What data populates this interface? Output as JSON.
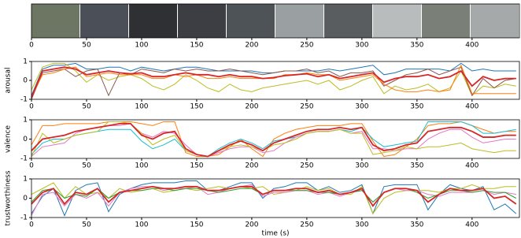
{
  "chart_data": [
    {
      "type": "image-strip",
      "xlim": [
        0,
        443
      ],
      "xticks": [
        0,
        50,
        100,
        150,
        200,
        250,
        300,
        350,
        400
      ]
    },
    {
      "type": "line",
      "ylabel": "arousal",
      "xlim": [
        0,
        443
      ],
      "ylim": [
        -1,
        1
      ],
      "xticks": [
        0,
        50,
        100,
        150,
        200,
        250,
        300,
        350,
        400
      ],
      "yticks": [
        -1,
        0,
        1
      ],
      "x": [
        0,
        10,
        20,
        30,
        40,
        50,
        60,
        70,
        80,
        90,
        100,
        110,
        120,
        130,
        140,
        150,
        160,
        170,
        180,
        190,
        200,
        210,
        220,
        230,
        240,
        250,
        260,
        270,
        280,
        290,
        300,
        310,
        320,
        330,
        340,
        350,
        360,
        370,
        380,
        390,
        400,
        410,
        420,
        430,
        440
      ],
      "series": [
        {
          "color": "#1f77b4",
          "values": [
            -0.8,
            0.6,
            0.8,
            0.8,
            0.9,
            0.6,
            0.6,
            0.7,
            0.7,
            0.5,
            0.7,
            0.6,
            0.5,
            0.6,
            0.7,
            0.7,
            0.6,
            0.5,
            0.5,
            0.5,
            0.5,
            0.4,
            0.4,
            0.5,
            0.5,
            0.5,
            0.5,
            0.6,
            0.5,
            0.6,
            0.7,
            0.8,
            0.3,
            0.4,
            0.6,
            0.6,
            0.6,
            0.6,
            0.5,
            0.9,
            0.5,
            0.6,
            0.5,
            0.5,
            0.5
          ]
        },
        {
          "color": "#bcbd22",
          "values": [
            -0.5,
            0.7,
            0.9,
            0.9,
            0.5,
            -0.1,
            0.3,
            0.0,
            0.2,
            0.3,
            0.1,
            -0.3,
            -0.5,
            -0.2,
            0.3,
            0.0,
            -0.4,
            -0.6,
            -0.2,
            -0.5,
            -0.6,
            -0.4,
            -0.3,
            -0.2,
            -0.1,
            0.0,
            -0.2,
            0.0,
            -0.5,
            -0.3,
            0.0,
            0.2,
            -0.7,
            -0.3,
            -0.5,
            -0.4,
            -0.2,
            -0.6,
            -0.4,
            0.5,
            -0.8,
            -0.3,
            -0.4,
            -0.2,
            -0.3
          ]
        },
        {
          "color": "#8c564b",
          "values": [
            -1,
            0.4,
            0.5,
            0.6,
            0.2,
            0.5,
            0.6,
            -0.8,
            0.4,
            0.3,
            0.6,
            0.5,
            0.4,
            0.6,
            0.5,
            0.6,
            0.5,
            0.5,
            0.6,
            0.5,
            0.4,
            0.3,
            0.4,
            0.5,
            0.5,
            0.6,
            0.4,
            0.5,
            0.2,
            0.4,
            0.4,
            0.5,
            -0.3,
            0.0,
            0.3,
            0.4,
            0.6,
            0.3,
            0.5,
            0.7,
            -0.8,
            0.1,
            -0.4,
            0.0,
            0.1
          ]
        },
        {
          "color": "#ff7f0e",
          "values": [
            -0.9,
            0.3,
            0.4,
            0.6,
            0.7,
            0.2,
            0.3,
            0.4,
            0.3,
            0.3,
            0.3,
            0.1,
            0.1,
            0.3,
            0.2,
            0.3,
            0.1,
            0.1,
            0.2,
            0.1,
            0.1,
            0.1,
            0.1,
            0.3,
            0.3,
            0.4,
            0.3,
            0.3,
            0.0,
            0.1,
            0.2,
            0.3,
            -0.2,
            -0.5,
            -0.6,
            -0.6,
            -0.5,
            -0.6,
            -0.5,
            0.8,
            -0.7,
            -0.7,
            -0.7,
            -0.7,
            -0.7
          ]
        },
        {
          "color": "#d62728",
          "values": [
            -0.9,
            0.5,
            0.6,
            0.7,
            0.6,
            0.3,
            0.4,
            0.5,
            0.4,
            0.35,
            0.4,
            0.2,
            0.2,
            0.3,
            0.4,
            0.3,
            0.3,
            0.2,
            0.3,
            0.2,
            0.2,
            0.1,
            0.15,
            0.25,
            0.3,
            0.35,
            0.2,
            0.3,
            0.1,
            0.2,
            0.3,
            0.4,
            -0.1,
            0.1,
            0.2,
            0.2,
            0.3,
            0.1,
            0.2,
            0.5,
            -0.3,
            0.2,
            0.0,
            0.1,
            0.1
          ]
        }
      ]
    },
    {
      "type": "line",
      "ylabel": "valence",
      "xlim": [
        0,
        443
      ],
      "ylim": [
        -1,
        1
      ],
      "xticks": [
        0,
        50,
        100,
        150,
        200,
        250,
        300,
        350,
        400
      ],
      "yticks": [
        -1,
        0,
        1
      ],
      "x": [
        0,
        10,
        20,
        30,
        40,
        50,
        60,
        70,
        80,
        90,
        100,
        110,
        120,
        130,
        140,
        150,
        160,
        170,
        180,
        190,
        200,
        210,
        220,
        230,
        240,
        250,
        260,
        270,
        280,
        290,
        300,
        310,
        320,
        330,
        340,
        350,
        360,
        370,
        380,
        390,
        400,
        410,
        420,
        430,
        440
      ],
      "series": [
        {
          "color": "#ff7f0e",
          "values": [
            -0.3,
            0.7,
            0.7,
            0.8,
            0.8,
            0.8,
            0.8,
            0.9,
            0.9,
            0.9,
            0.8,
            0.7,
            0.9,
            0.9,
            -0.7,
            -0.9,
            -0.9,
            -0.8,
            -0.4,
            0.0,
            -0.5,
            -0.9,
            0.0,
            0.3,
            0.5,
            0.6,
            0.7,
            0.7,
            0.7,
            0.8,
            0.8,
            -0.1,
            -0.9,
            -0.8,
            -0.4,
            0.0,
            0.7,
            0.8,
            0.8,
            0.9,
            0.7,
            0.5,
            0.3,
            0.4,
            0.4
          ]
        },
        {
          "color": "#17becf",
          "values": [
            -0.8,
            -0.2,
            0.0,
            0.0,
            0.2,
            0.3,
            0.4,
            0.5,
            0.5,
            0.5,
            -0.1,
            -0.5,
            -0.3,
            0.0,
            -0.6,
            -0.8,
            -0.9,
            -0.5,
            -0.2,
            0.0,
            -0.2,
            -0.5,
            -0.1,
            0.0,
            0.1,
            0.3,
            0.4,
            0.4,
            0.5,
            0.4,
            0.6,
            0.0,
            -0.4,
            -0.3,
            -0.2,
            -0.1,
            0.9,
            0.9,
            0.9,
            0.9,
            0.7,
            0.3,
            0.3,
            0.4,
            0.5
          ]
        },
        {
          "color": "#e377c2",
          "values": [
            -0.9,
            -0.4,
            -0.3,
            -0.2,
            0.3,
            0.5,
            0.6,
            0.7,
            0.7,
            0.8,
            0.3,
            0.1,
            0.4,
            0.3,
            -0.3,
            -0.8,
            -0.9,
            -0.7,
            -0.5,
            -0.4,
            -0.4,
            -0.7,
            -0.6,
            -0.2,
            0.1,
            0.3,
            0.4,
            0.4,
            0.5,
            0.3,
            0.4,
            -0.5,
            -0.5,
            -0.6,
            -0.5,
            -0.5,
            0.0,
            0.3,
            0.5,
            0.5,
            0.1,
            -0.2,
            -0.1,
            0.0,
            0.0
          ]
        },
        {
          "color": "#bcbd22",
          "values": [
            -0.9,
            0.3,
            -0.2,
            0.0,
            0.2,
            0.3,
            0.4,
            0.9,
            0.9,
            0.8,
            0.3,
            -0.3,
            0.0,
            0.2,
            -0.6,
            -0.8,
            -0.9,
            -0.6,
            -0.4,
            -0.3,
            -0.4,
            -0.6,
            -0.3,
            -0.2,
            0.0,
            0.3,
            0.4,
            0.4,
            0.5,
            0.3,
            0.3,
            -0.8,
            -0.7,
            -0.6,
            -0.4,
            -0.5,
            -0.4,
            -0.4,
            -0.3,
            -0.2,
            -0.5,
            -0.6,
            -0.7,
            -0.6,
            -0.6
          ]
        },
        {
          "color": "#d62728",
          "values": [
            -0.6,
            0.0,
            0.1,
            0.2,
            0.4,
            0.5,
            0.6,
            0.7,
            0.8,
            0.8,
            0.2,
            0.0,
            0.3,
            0.4,
            -0.5,
            -0.8,
            -0.9,
            -0.6,
            -0.3,
            -0.1,
            -0.3,
            -0.6,
            -0.2,
            0.0,
            0.2,
            0.4,
            0.5,
            0.5,
            0.6,
            0.5,
            0.6,
            -0.3,
            -0.6,
            -0.5,
            -0.3,
            -0.2,
            0.4,
            0.5,
            0.6,
            0.6,
            0.4,
            0.1,
            0.1,
            0.2,
            0.2
          ]
        }
      ]
    },
    {
      "type": "line",
      "ylabel": "trustworthiness",
      "xlabel": "time (s)",
      "xlim": [
        0,
        443
      ],
      "ylim": [
        -1,
        1
      ],
      "xticks": [
        0,
        50,
        100,
        150,
        200,
        250,
        300,
        350,
        400
      ],
      "yticks": [
        -1,
        0,
        1
      ],
      "x": [
        0,
        10,
        20,
        30,
        40,
        50,
        60,
        70,
        80,
        90,
        100,
        110,
        120,
        130,
        140,
        150,
        160,
        170,
        180,
        190,
        200,
        210,
        220,
        230,
        240,
        250,
        260,
        270,
        280,
        290,
        300,
        310,
        320,
        330,
        340,
        350,
        360,
        370,
        380,
        390,
        400,
        410,
        420,
        430,
        440
      ],
      "series": [
        {
          "color": "#1f77b4",
          "values": [
            -0.8,
            0.1,
            0.5,
            -0.9,
            0.4,
            0.7,
            0.8,
            -0.7,
            0.2,
            0.5,
            0.7,
            0.8,
            0.8,
            0.8,
            0.9,
            0.9,
            0.4,
            0.4,
            0.6,
            0.8,
            0.8,
            0.0,
            0.5,
            0.6,
            0.8,
            0.8,
            0.4,
            0.6,
            0.3,
            0.4,
            0.7,
            -0.8,
            0.6,
            0.7,
            0.7,
            0.7,
            -0.6,
            0.2,
            0.7,
            0.5,
            0.4,
            0.6,
            -0.6,
            -0.3,
            -0.8
          ]
        },
        {
          "color": "#bcbd22",
          "values": [
            0.2,
            0.5,
            0.8,
            0.0,
            0.6,
            0.2,
            0.3,
            0.0,
            0.5,
            0.3,
            0.4,
            0.5,
            0.3,
            0.4,
            0.5,
            0.4,
            0.5,
            0.6,
            0.5,
            0.6,
            0.5,
            0.6,
            0.2,
            0.3,
            0.4,
            0.6,
            0.4,
            0.5,
            0.2,
            0.2,
            0.6,
            -0.8,
            0.0,
            0.3,
            0.4,
            0.4,
            0.4,
            0.3,
            0.5,
            0.5,
            0.7,
            0.5,
            0.5,
            0.6,
            0.6
          ]
        },
        {
          "color": "#e377c2",
          "values": [
            -0.9,
            0.2,
            0.3,
            -0.4,
            0.2,
            0.0,
            0.3,
            -0.4,
            0.3,
            0.5,
            0.6,
            0.6,
            0.4,
            0.5,
            0.5,
            0.6,
            0.2,
            0.3,
            0.5,
            0.6,
            0.7,
            0.1,
            0.3,
            0.3,
            0.4,
            0.4,
            0.2,
            0.3,
            0.1,
            0.3,
            0.4,
            -0.2,
            0.3,
            0.5,
            0.4,
            0.4,
            0.2,
            0.1,
            0.3,
            0.3,
            0.3,
            0.4,
            0.2,
            0.3,
            0.2
          ]
        },
        {
          "color": "#2ca02c",
          "values": [
            -0.2,
            0.4,
            0.5,
            0.0,
            0.2,
            0.1,
            0.5,
            0.0,
            0.3,
            0.4,
            0.4,
            0.5,
            0.5,
            0.4,
            0.5,
            0.5,
            0.4,
            0.3,
            0.4,
            0.5,
            0.5,
            0.2,
            0.4,
            0.4,
            0.4,
            0.4,
            0.3,
            0.3,
            0.2,
            0.3,
            0.4,
            -0.2,
            0.3,
            0.5,
            0.5,
            0.3,
            0.0,
            0.2,
            0.4,
            0.4,
            0.3,
            0.4,
            0.3,
            0.3,
            0.0
          ]
        },
        {
          "color": "#d62728",
          "values": [
            -0.3,
            0.3,
            0.5,
            -0.3,
            0.3,
            0.2,
            0.5,
            -0.2,
            0.3,
            0.4,
            0.5,
            0.6,
            0.5,
            0.5,
            0.6,
            0.6,
            0.4,
            0.4,
            0.5,
            0.6,
            0.6,
            0.2,
            0.4,
            0.4,
            0.5,
            0.5,
            0.3,
            0.4,
            0.2,
            0.3,
            0.5,
            -0.4,
            0.3,
            0.5,
            0.5,
            0.4,
            -0.2,
            0.2,
            0.5,
            0.4,
            0.4,
            0.5,
            0.0,
            0.1,
            -0.3
          ]
        }
      ]
    }
  ]
}
